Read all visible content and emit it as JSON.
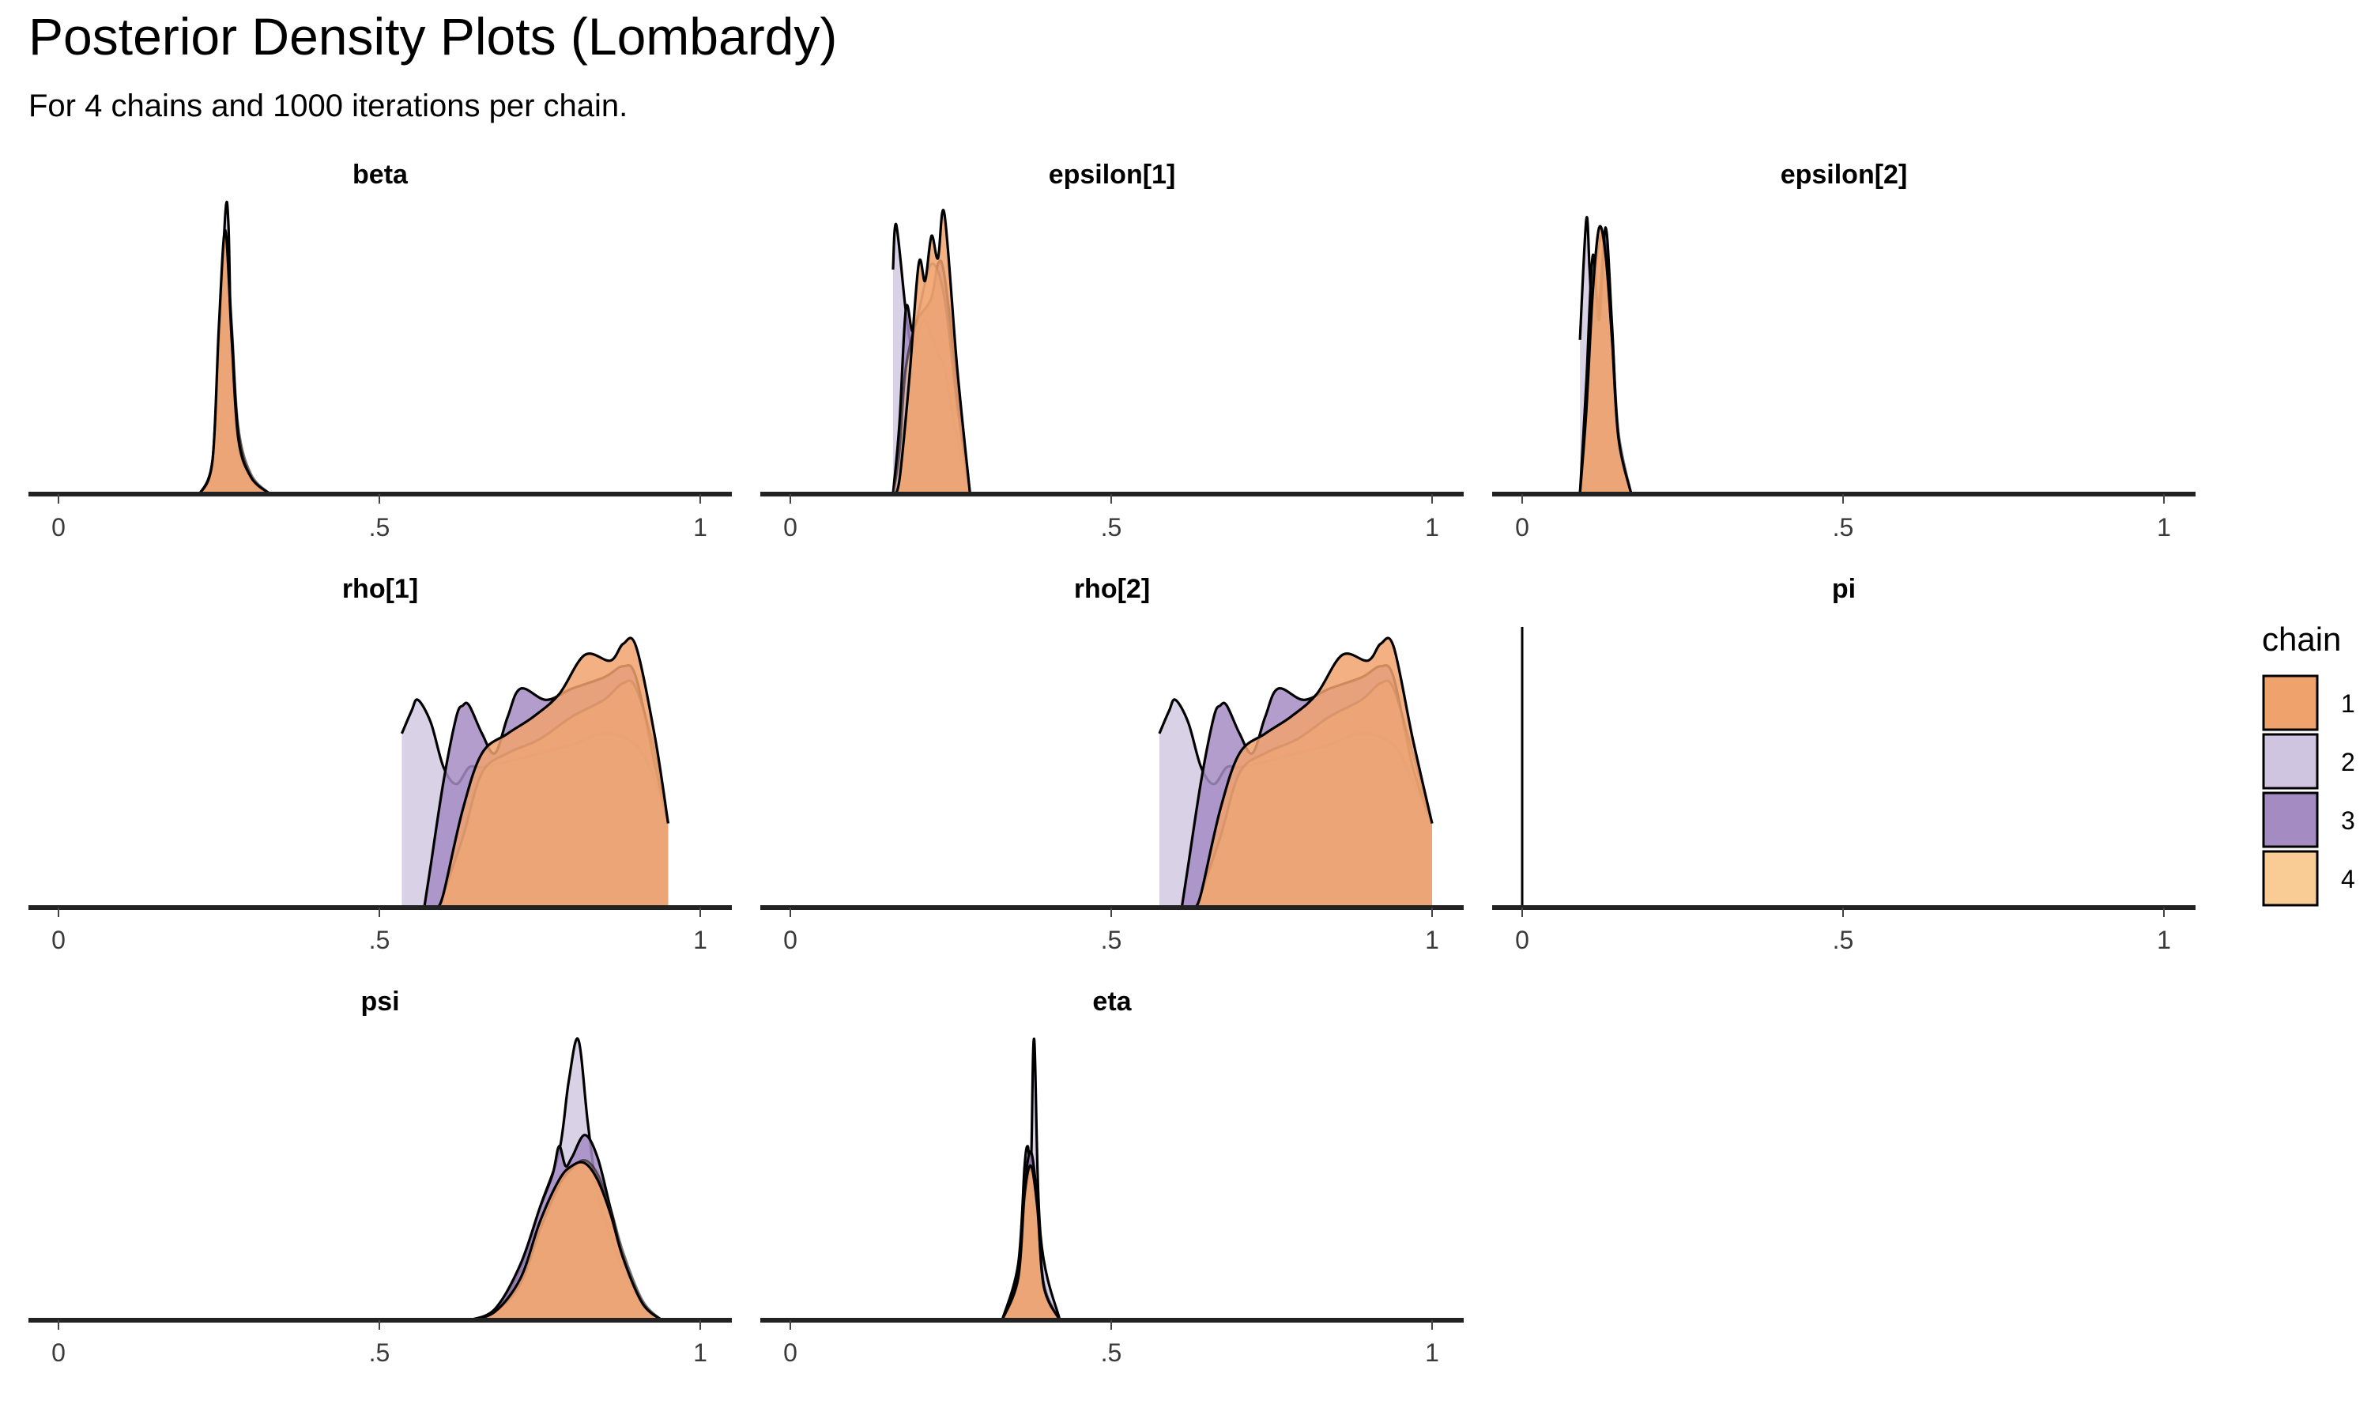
{
  "title": "Posterior Density Plots (Lombardy)",
  "subtitle": "For 4 chains and 1000 iterations per chain.",
  "legend": {
    "title": "chain",
    "items": [
      {
        "label": "1",
        "color": "#f0a26d"
      },
      {
        "label": "2",
        "color": "#cfc5e0"
      },
      {
        "label": "3",
        "color": "#a48cc3"
      },
      {
        "label": "4",
        "color": "#f9cc96"
      }
    ]
  },
  "chart_data": {
    "type": "area",
    "chart_kind": "faceted posterior density",
    "facet_columns": 3,
    "xlim": [
      0,
      1
    ],
    "x_ticks": [
      0,
      0.5,
      1
    ],
    "x_tick_labels": [
      "0",
      ".5",
      "1"
    ],
    "grid": false,
    "legend_position": "right",
    "series_colors": {
      "1": "#f0a26d",
      "2": "#cfc5e0",
      "3": "#a48cc3",
      "4": "#f9cc96"
    },
    "facets": [
      {
        "name": "beta",
        "series": [
          {
            "chain": "1",
            "x": [
              0.22,
              0.24,
              0.25,
              0.26,
              0.27,
              0.28,
              0.3,
              0.33
            ],
            "y": [
              0,
              0.12,
              0.6,
              0.94,
              0.55,
              0.2,
              0.06,
              0
            ]
          },
          {
            "chain": "2",
            "x": [
              0.22,
              0.24,
              0.25,
              0.26,
              0.265,
              0.27,
              0.28,
              0.3,
              0.33
            ],
            "y": [
              0,
              0.1,
              0.5,
              1.0,
              0.95,
              0.45,
              0.15,
              0.05,
              0
            ]
          },
          {
            "chain": "3",
            "x": [
              0.22,
              0.24,
              0.25,
              0.26,
              0.27,
              0.28,
              0.3,
              0.33
            ],
            "y": [
              0,
              0.12,
              0.55,
              0.92,
              0.58,
              0.22,
              0.06,
              0
            ]
          },
          {
            "chain": "4",
            "x": [
              0.22,
              0.24,
              0.25,
              0.26,
              0.27,
              0.28,
              0.3,
              0.33
            ],
            "y": [
              0,
              0.12,
              0.58,
              0.9,
              0.6,
              0.24,
              0.07,
              0
            ]
          }
        ]
      },
      {
        "name": "epsilon[1]",
        "series": [
          {
            "chain": "1",
            "x": [
              0.16,
              0.17,
              0.185,
              0.2,
              0.21,
              0.22,
              0.23,
              0.24,
              0.26,
              0.28
            ],
            "y": [
              0,
              0.05,
              0.4,
              0.82,
              0.76,
              0.92,
              0.84,
              1.0,
              0.45,
              0
            ]
          },
          {
            "chain": "2",
            "x": [
              0.16,
              0.165,
              0.18,
              0.19,
              0.2,
              0.21,
              0.23,
              0.24,
              0.26,
              0.28
            ],
            "y": [
              0.8,
              0.96,
              0.65,
              0.52,
              0.58,
              0.62,
              0.5,
              0.45,
              0.2,
              0
            ]
          },
          {
            "chain": "3",
            "x": [
              0.16,
              0.17,
              0.18,
              0.19,
              0.2,
              0.22,
              0.23,
              0.24,
              0.26,
              0.28
            ],
            "y": [
              0,
              0.25,
              0.66,
              0.58,
              0.63,
              0.7,
              0.82,
              0.78,
              0.4,
              0
            ]
          },
          {
            "chain": "4",
            "x": [
              0.16,
              0.17,
              0.18,
              0.2,
              0.22,
              0.24,
              0.26,
              0.28
            ],
            "y": [
              0,
              0.15,
              0.45,
              0.65,
              0.82,
              0.7,
              0.32,
              0
            ]
          }
        ]
      },
      {
        "name": "epsilon[2]",
        "series": [
          {
            "chain": "1",
            "x": [
              0.09,
              0.1,
              0.11,
              0.12,
              0.13,
              0.14,
              0.15,
              0.17
            ],
            "y": [
              0,
              0.3,
              0.72,
              0.95,
              0.85,
              0.55,
              0.2,
              0
            ]
          },
          {
            "chain": "2",
            "x": [
              0.09,
              0.1,
              0.105,
              0.11,
              0.12,
              0.13,
              0.14,
              0.15,
              0.17
            ],
            "y": [
              0.55,
              0.98,
              0.8,
              0.62,
              0.68,
              0.92,
              0.55,
              0.18,
              0
            ]
          },
          {
            "chain": "3",
            "x": [
              0.09,
              0.1,
              0.11,
              0.12,
              0.13,
              0.14,
              0.15,
              0.17
            ],
            "y": [
              0,
              0.4,
              0.85,
              0.62,
              0.95,
              0.6,
              0.2,
              0
            ]
          },
          {
            "chain": "4",
            "x": [
              0.09,
              0.1,
              0.11,
              0.12,
              0.13,
              0.14,
              0.15,
              0.17
            ],
            "y": [
              0,
              0.28,
              0.7,
              0.9,
              0.88,
              0.58,
              0.22,
              0
            ]
          }
        ]
      },
      {
        "name": "rho[1]",
        "series": [
          {
            "chain": "1",
            "x": [
              0.59,
              0.6,
              0.63,
              0.66,
              0.7,
              0.74,
              0.78,
              0.82,
              0.86,
              0.88,
              0.9,
              0.93,
              0.95
            ],
            "y": [
              0,
              0.05,
              0.35,
              0.55,
              0.62,
              0.68,
              0.76,
              0.9,
              0.88,
              0.94,
              0.93,
              0.6,
              0.3
            ]
          },
          {
            "chain": "2",
            "x": [
              0.535,
              0.55,
              0.56,
              0.58,
              0.6,
              0.62,
              0.64,
              0.66,
              0.7,
              0.75,
              0.8,
              0.85,
              0.9,
              0.93,
              0.95
            ],
            "y": [
              0.62,
              0.7,
              0.74,
              0.66,
              0.5,
              0.44,
              0.5,
              0.5,
              0.52,
              0.55,
              0.58,
              0.62,
              0.58,
              0.45,
              0.3
            ]
          },
          {
            "chain": "3",
            "x": [
              0.57,
              0.58,
              0.6,
              0.62,
              0.63,
              0.64,
              0.66,
              0.68,
              0.7,
              0.72,
              0.76,
              0.8,
              0.85,
              0.88,
              0.9,
              0.93,
              0.95
            ],
            "y": [
              0,
              0.15,
              0.45,
              0.68,
              0.72,
              0.72,
              0.62,
              0.55,
              0.68,
              0.78,
              0.74,
              0.78,
              0.82,
              0.86,
              0.82,
              0.5,
              0.3
            ]
          },
          {
            "chain": "4",
            "x": [
              0.6,
              0.63,
              0.66,
              0.7,
              0.75,
              0.8,
              0.85,
              0.88,
              0.9,
              0.93,
              0.95
            ],
            "y": [
              0.05,
              0.25,
              0.48,
              0.55,
              0.6,
              0.68,
              0.74,
              0.8,
              0.78,
              0.55,
              0.3
            ]
          }
        ]
      },
      {
        "name": "rho[2]",
        "series": [
          {
            "chain": "1",
            "x": [
              0.63,
              0.64,
              0.67,
              0.7,
              0.74,
              0.78,
              0.82,
              0.86,
              0.9,
              0.92,
              0.94,
              0.97,
              1.0
            ],
            "y": [
              0,
              0.05,
              0.35,
              0.55,
              0.62,
              0.68,
              0.76,
              0.9,
              0.88,
              0.94,
              0.93,
              0.6,
              0.3
            ]
          },
          {
            "chain": "2",
            "x": [
              0.575,
              0.59,
              0.6,
              0.62,
              0.64,
              0.66,
              0.68,
              0.7,
              0.74,
              0.79,
              0.84,
              0.89,
              0.94,
              0.97,
              1.0
            ],
            "y": [
              0.62,
              0.7,
              0.74,
              0.66,
              0.5,
              0.44,
              0.5,
              0.5,
              0.52,
              0.55,
              0.58,
              0.62,
              0.58,
              0.45,
              0.3
            ]
          },
          {
            "chain": "3",
            "x": [
              0.61,
              0.62,
              0.64,
              0.66,
              0.67,
              0.68,
              0.7,
              0.72,
              0.74,
              0.76,
              0.8,
              0.84,
              0.89,
              0.92,
              0.94,
              0.97,
              1.0
            ],
            "y": [
              0,
              0.15,
              0.45,
              0.68,
              0.72,
              0.72,
              0.62,
              0.55,
              0.68,
              0.78,
              0.74,
              0.78,
              0.82,
              0.86,
              0.82,
              0.5,
              0.3
            ]
          },
          {
            "chain": "4",
            "x": [
              0.64,
              0.67,
              0.7,
              0.74,
              0.79,
              0.84,
              0.89,
              0.92,
              0.94,
              0.97,
              1.0
            ],
            "y": [
              0.05,
              0.25,
              0.48,
              0.55,
              0.6,
              0.68,
              0.74,
              0.8,
              0.78,
              0.55,
              0.3
            ]
          }
        ]
      },
      {
        "name": "pi",
        "series": [
          {
            "chain": "1",
            "x": [
              0,
              0
            ],
            "y": [
              0,
              1
            ]
          },
          {
            "chain": "2",
            "x": [
              0,
              0
            ],
            "y": [
              0,
              1
            ]
          },
          {
            "chain": "3",
            "x": [
              0,
              0
            ],
            "y": [
              0,
              1
            ]
          },
          {
            "chain": "4",
            "x": [
              0,
              0
            ],
            "y": [
              0,
              1
            ]
          }
        ]
      },
      {
        "name": "psi",
        "series": [
          {
            "chain": "1",
            "x": [
              0.64,
              0.68,
              0.72,
              0.75,
              0.78,
              0.8,
              0.82,
              0.84,
              0.86,
              0.88,
              0.91,
              0.94
            ],
            "y": [
              0,
              0.03,
              0.15,
              0.35,
              0.5,
              0.55,
              0.56,
              0.5,
              0.38,
              0.22,
              0.06,
              0
            ]
          },
          {
            "chain": "2",
            "x": [
              0.64,
              0.68,
              0.72,
              0.75,
              0.78,
              0.795,
              0.81,
              0.825,
              0.84,
              0.86,
              0.88,
              0.91,
              0.94
            ],
            "y": [
              0,
              0.03,
              0.18,
              0.4,
              0.6,
              0.85,
              1.0,
              0.7,
              0.45,
              0.3,
              0.18,
              0.05,
              0
            ]
          },
          {
            "chain": "3",
            "x": [
              0.64,
              0.68,
              0.72,
              0.75,
              0.77,
              0.78,
              0.79,
              0.8,
              0.82,
              0.84,
              0.86,
              0.88,
              0.91,
              0.94
            ],
            "y": [
              0,
              0.04,
              0.2,
              0.4,
              0.52,
              0.62,
              0.55,
              0.58,
              0.66,
              0.58,
              0.4,
              0.22,
              0.06,
              0
            ]
          },
          {
            "chain": "4",
            "x": [
              0.64,
              0.68,
              0.72,
              0.75,
              0.78,
              0.8,
              0.82,
              0.84,
              0.86,
              0.88,
              0.91,
              0.94
            ],
            "y": [
              0,
              0.03,
              0.13,
              0.32,
              0.48,
              0.54,
              0.57,
              0.52,
              0.4,
              0.24,
              0.07,
              0
            ]
          }
        ]
      },
      {
        "name": "eta",
        "series": [
          {
            "chain": "1",
            "x": [
              0.33,
              0.355,
              0.365,
              0.375,
              0.385,
              0.395,
              0.42
            ],
            "y": [
              0,
              0.15,
              0.45,
              0.55,
              0.4,
              0.12,
              0
            ]
          },
          {
            "chain": "2",
            "x": [
              0.33,
              0.355,
              0.365,
              0.37,
              0.375,
              0.38,
              0.39,
              0.42
            ],
            "y": [
              0,
              0.2,
              0.55,
              0.62,
              0.55,
              1.0,
              0.3,
              0
            ]
          },
          {
            "chain": "3",
            "x": [
              0.33,
              0.355,
              0.365,
              0.375,
              0.385,
              0.395,
              0.42
            ],
            "y": [
              0,
              0.18,
              0.48,
              0.6,
              0.42,
              0.12,
              0
            ]
          },
          {
            "chain": "4",
            "x": [
              0.33,
              0.355,
              0.365,
              0.375,
              0.385,
              0.395,
              0.42
            ],
            "y": [
              0,
              0.14,
              0.42,
              0.54,
              0.42,
              0.13,
              0
            ]
          }
        ]
      }
    ]
  }
}
